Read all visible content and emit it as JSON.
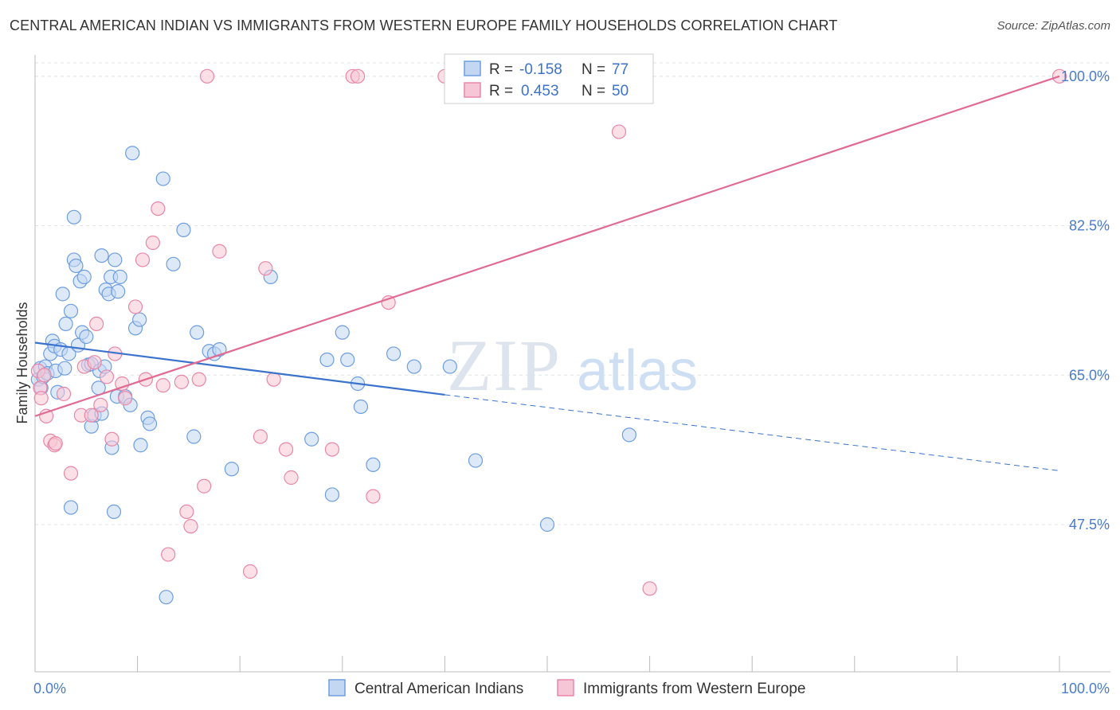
{
  "title": "CENTRAL AMERICAN INDIAN VS IMMIGRANTS FROM WESTERN EUROPE FAMILY HOUSEHOLDS CORRELATION CHART",
  "source": "Source: ZipAtlas.com",
  "watermark": {
    "zip": "ZIP",
    "atlas": "atlas"
  },
  "chart_data": {
    "type": "scatter",
    "title": "CENTRAL AMERICAN INDIAN VS IMMIGRANTS FROM WESTERN EUROPE FAMILY HOUSEHOLDS CORRELATION CHART",
    "xlabel": "",
    "ylabel": "Family Households",
    "xlim": [
      0,
      100
    ],
    "ylim": [
      31,
      102.5
    ],
    "x_tick_labels": [
      {
        "value": 0,
        "label": "0.0%"
      },
      {
        "value": 100,
        "label": "100.0%"
      }
    ],
    "y_ticks": [
      {
        "value": 47.5,
        "label": "47.5%"
      },
      {
        "value": 65.0,
        "label": "65.0%"
      },
      {
        "value": 82.5,
        "label": "82.5%"
      },
      {
        "value": 100.0,
        "label": "100.0%"
      }
    ],
    "grid": true,
    "legend": {
      "position": "top-center",
      "rows": [
        {
          "r_label": "R =",
          "r_value": "-0.158",
          "n_label": "N =",
          "n_value": "77"
        },
        {
          "r_label": "R =",
          "r_value": "0.453",
          "n_label": "N =",
          "n_value": "50"
        }
      ]
    },
    "series": [
      {
        "name": "Central American Indians",
        "color": "#6d9ee0",
        "fill": "#c3d7f3",
        "trend": {
          "x0": 0,
          "y0": 68.8,
          "x1": 40,
          "y1": 62.7,
          "dash_to_x": 100,
          "dash_to_y": 53.8
        },
        "points": [
          [
            0.3,
            64.5
          ],
          [
            0.5,
            65.8
          ],
          [
            0.6,
            63.5
          ],
          [
            0.8,
            64.8
          ],
          [
            1.0,
            66.0
          ],
          [
            1.2,
            65.2
          ],
          [
            1.5,
            67.5
          ],
          [
            1.7,
            69.0
          ],
          [
            1.9,
            68.4
          ],
          [
            2.0,
            65.5
          ],
          [
            2.2,
            63.0
          ],
          [
            2.5,
            68.0
          ],
          [
            2.7,
            74.5
          ],
          [
            2.9,
            65.8
          ],
          [
            3.0,
            71.0
          ],
          [
            3.3,
            67.5
          ],
          [
            3.5,
            72.5
          ],
          [
            3.5,
            49.5
          ],
          [
            3.8,
            83.5
          ],
          [
            3.8,
            78.5
          ],
          [
            4.0,
            77.8
          ],
          [
            4.2,
            68.5
          ],
          [
            4.4,
            76.0
          ],
          [
            4.6,
            70.0
          ],
          [
            4.8,
            76.5
          ],
          [
            5.0,
            69.5
          ],
          [
            5.2,
            66.2
          ],
          [
            5.5,
            66.3
          ],
          [
            5.5,
            59.0
          ],
          [
            5.8,
            60.3
          ],
          [
            6.2,
            63.5
          ],
          [
            6.3,
            65.5
          ],
          [
            6.5,
            60.5
          ],
          [
            6.5,
            79.0
          ],
          [
            6.8,
            66.0
          ],
          [
            6.9,
            75.0
          ],
          [
            7.2,
            74.5
          ],
          [
            7.4,
            76.5
          ],
          [
            7.5,
            56.5
          ],
          [
            7.7,
            49.0
          ],
          [
            7.8,
            78.5
          ],
          [
            8.0,
            62.5
          ],
          [
            8.1,
            74.8
          ],
          [
            8.3,
            76.5
          ],
          [
            8.8,
            62.5
          ],
          [
            9.3,
            61.5
          ],
          [
            9.5,
            91.0
          ],
          [
            9.8,
            70.5
          ],
          [
            10.2,
            71.5
          ],
          [
            10.3,
            56.8
          ],
          [
            11.0,
            60.0
          ],
          [
            11.2,
            59.3
          ],
          [
            12.5,
            88.0
          ],
          [
            12.8,
            39.0
          ],
          [
            13.5,
            78.0
          ],
          [
            14.5,
            82.0
          ],
          [
            15.5,
            57.8
          ],
          [
            15.8,
            70.0
          ],
          [
            17.0,
            67.8
          ],
          [
            17.5,
            67.5
          ],
          [
            18.0,
            68.0
          ],
          [
            19.2,
            54.0
          ],
          [
            23.0,
            76.5
          ],
          [
            27.0,
            57.5
          ],
          [
            29.0,
            51.0
          ],
          [
            28.5,
            66.8
          ],
          [
            30.0,
            70.0
          ],
          [
            30.5,
            66.8
          ],
          [
            31.5,
            64.0
          ],
          [
            31.8,
            61.3
          ],
          [
            33.0,
            54.5
          ],
          [
            35.0,
            67.5
          ],
          [
            37.0,
            66.0
          ],
          [
            40.5,
            66.0
          ],
          [
            43.0,
            55.0
          ],
          [
            50.0,
            47.5
          ],
          [
            58.0,
            58.0
          ]
        ]
      },
      {
        "name": "Immigrants from Western Europe",
        "color": "#e887a6",
        "fill": "#f7c6d6",
        "trend": {
          "x0": 0,
          "y0": 60.2,
          "x1": 100,
          "y1": 100.0
        },
        "points": [
          [
            0.3,
            65.5
          ],
          [
            0.5,
            63.5
          ],
          [
            0.6,
            62.3
          ],
          [
            0.9,
            65.0
          ],
          [
            1.1,
            60.2
          ],
          [
            1.5,
            57.3
          ],
          [
            1.9,
            56.8
          ],
          [
            2.0,
            57.0
          ],
          [
            2.8,
            62.8
          ],
          [
            3.5,
            53.5
          ],
          [
            4.5,
            60.3
          ],
          [
            4.8,
            66.0
          ],
          [
            5.8,
            66.5
          ],
          [
            5.5,
            60.3
          ],
          [
            6.0,
            71.0
          ],
          [
            6.4,
            61.5
          ],
          [
            7.0,
            64.8
          ],
          [
            7.5,
            57.5
          ],
          [
            7.8,
            67.5
          ],
          [
            8.5,
            64.0
          ],
          [
            8.8,
            62.3
          ],
          [
            9.8,
            73.0
          ],
          [
            10.5,
            78.5
          ],
          [
            10.8,
            64.5
          ],
          [
            11.5,
            80.5
          ],
          [
            12.0,
            84.5
          ],
          [
            12.5,
            63.8
          ],
          [
            13.0,
            44.0
          ],
          [
            14.3,
            64.2
          ],
          [
            14.8,
            49.0
          ],
          [
            15.2,
            47.3
          ],
          [
            16.0,
            64.5
          ],
          [
            16.5,
            52.0
          ],
          [
            16.8,
            100.0
          ],
          [
            18.0,
            79.5
          ],
          [
            21.0,
            42.0
          ],
          [
            22.0,
            57.8
          ],
          [
            22.5,
            77.5
          ],
          [
            23.3,
            64.5
          ],
          [
            24.5,
            56.3
          ],
          [
            25.0,
            53.0
          ],
          [
            29.0,
            56.3
          ],
          [
            31.0,
            100.0
          ],
          [
            31.5,
            100.0
          ],
          [
            33.0,
            50.8
          ],
          [
            34.5,
            73.5
          ],
          [
            40.0,
            100.0
          ],
          [
            57.0,
            93.5
          ],
          [
            60.0,
            40.0
          ],
          [
            100.0,
            100.0
          ]
        ]
      }
    ]
  }
}
